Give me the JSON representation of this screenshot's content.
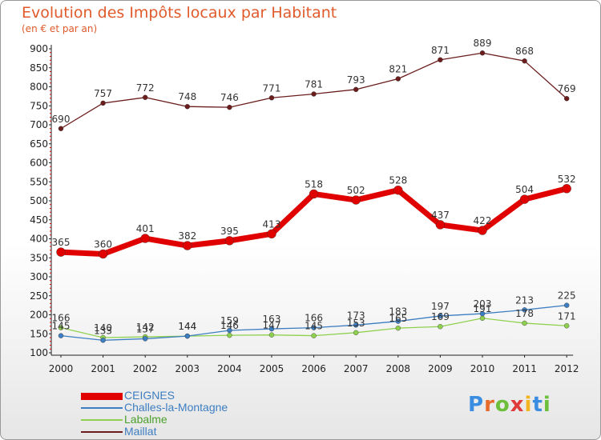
{
  "title": "Evolution des Impôts locaux par Habitant",
  "subtitle": "(en € et par an)",
  "logo": {
    "text": "Proxiti",
    "colors": [
      "#3a8de0",
      "#e86a2a",
      "#6bbf3a",
      "#e03a3a",
      "#f2b51f",
      "#3a8de0",
      "#6bbf3a"
    ]
  },
  "chart_data": {
    "type": "line",
    "title": "Evolution des Impôts locaux par Habitant",
    "subtitle": "(en € et par an)",
    "x": [
      2000,
      2001,
      2002,
      2003,
      2004,
      2005,
      2006,
      2007,
      2008,
      2009,
      2010,
      2011,
      2012
    ],
    "x_tick_labels": [
      "2000",
      "2001",
      "2002",
      "2003",
      "2004",
      "2005",
      "2006",
      "2007",
      "2008",
      "2009",
      "2010",
      "2011",
      "2012"
    ],
    "ylim": [
      100,
      900
    ],
    "y_ticks": [
      100,
      150,
      200,
      250,
      300,
      350,
      400,
      450,
      500,
      550,
      600,
      650,
      700,
      750,
      800,
      850,
      900
    ],
    "y_tick_labels": [
      "100",
      "150",
      "200",
      "250",
      "300",
      "350",
      "400",
      "450",
      "500",
      "550",
      "600",
      "650",
      "700",
      "750",
      "800",
      "850",
      "900"
    ],
    "grid": false,
    "legend_position": "bottom-left",
    "series": [
      {
        "name": "CEIGNES",
        "color": "#e00000",
        "values": [
          365,
          360,
          401,
          382,
          395,
          413,
          518,
          502,
          528,
          437,
          422,
          504,
          532
        ],
        "labels_shown": true
      },
      {
        "name": "Challes-la-Montagne",
        "color": "#3d7ec2",
        "values": [
          145,
          133,
          137,
          144,
          159,
          163,
          166,
          173,
          183,
          197,
          203,
          213,
          225
        ],
        "labels_shown": true
      },
      {
        "name": "Labalme",
        "color": "#8fd14f",
        "values": [
          166,
          140,
          142,
          144,
          146,
          147,
          145,
          153,
          165,
          169,
          191,
          178,
          171
        ],
        "labels_shown": true
      },
      {
        "name": "Maillat",
        "color": "#6b1c1c",
        "values": [
          690,
          757,
          772,
          748,
          746,
          771,
          781,
          793,
          821,
          871,
          889,
          868,
          769
        ],
        "labels_shown": true
      }
    ]
  }
}
